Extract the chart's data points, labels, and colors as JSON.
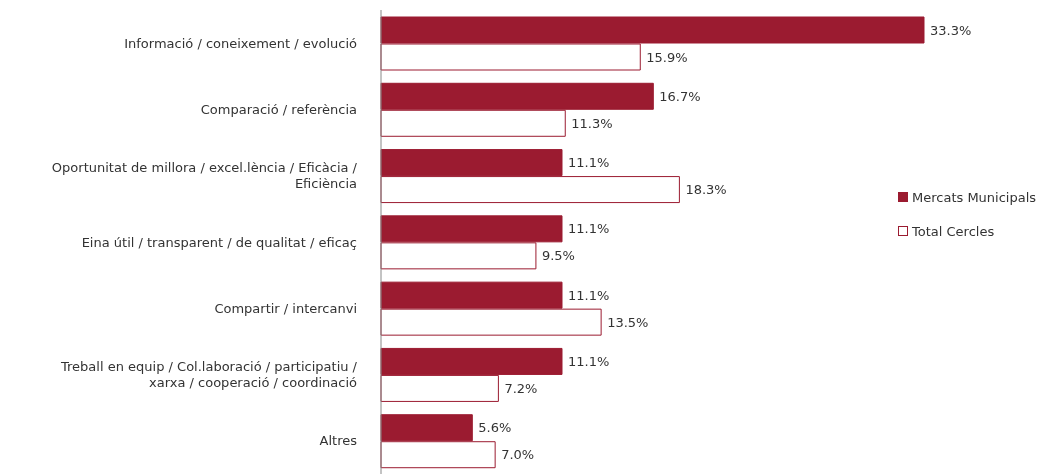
{
  "chart_data": {
    "type": "bar",
    "orientation": "horizontal",
    "categories": [
      "Informació / coneixement / evolució",
      "Comparació / referència",
      "Oportunitat de millora / excel.lència / Eficàcia / Eficiència",
      "Eina útil / transparent / de qualitat / eficaç",
      "Compartir / intercanvi",
      "Treball en equip / Col.laboració / participatiu / xarxa / cooperació / coordinació",
      "Altres"
    ],
    "series": [
      {
        "name": "Mercats Municipals",
        "color": "#9b1b30",
        "values": [
          33.3,
          16.7,
          11.1,
          11.1,
          11.1,
          11.1,
          5.6
        ],
        "value_labels": [
          "33.3%",
          "16.7%",
          "11.1%",
          "11.1%",
          "11.1%",
          "11.1%",
          "5.6%"
        ]
      },
      {
        "name": "Total Cercles",
        "color": "#ffffff",
        "values": [
          15.9,
          11.3,
          18.3,
          9.5,
          13.5,
          7.2,
          7.0
        ],
        "value_labels": [
          "15.9%",
          "11.3%",
          "18.3%",
          "9.5%",
          "13.5%",
          "7.2%",
          "7.0%"
        ]
      }
    ],
    "legend": "right"
  }
}
